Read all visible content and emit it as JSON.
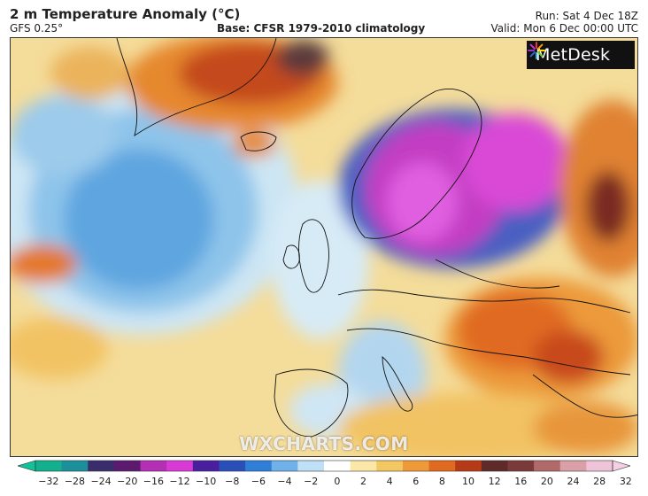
{
  "header": {
    "title": "2 m Temperature Anomaly (°C)",
    "model": "GFS 0.25°",
    "base": "Base: CFSR 1979-2010 climatology",
    "run": "Run: Sat 4 Dec 18Z",
    "valid": "Valid: Mon 6 Dec 00:00 UTC"
  },
  "logo": {
    "text": "MetDesk",
    "icon": "metdesk-starburst-icon"
  },
  "watermark": "WXCHARTS.COM",
  "colorbar": {
    "ticks": [
      -32,
      -28,
      -24,
      -20,
      -16,
      -12,
      -10,
      -8,
      -6,
      -4,
      -2,
      0,
      2,
      4,
      6,
      8,
      10,
      12,
      16,
      20,
      24,
      28,
      32
    ],
    "colors": [
      "#12b08c",
      "#1b8f9a",
      "#3a2d6b",
      "#5b1a6e",
      "#b52fb4",
      "#d93ad6",
      "#4a1f9e",
      "#2b4fb8",
      "#2f7fd9",
      "#6fb2ea",
      "#bfe0f5",
      "#ffffff",
      "#fbe7a8",
      "#f3c862",
      "#ee9a38",
      "#e06a1f",
      "#b73a16",
      "#5e2a2a",
      "#7b3a3a",
      "#b06a6a",
      "#d9a0a8",
      "#f0c4d8"
    ],
    "ends": {
      "left": "#12c39a",
      "right": "#f5d0e4"
    }
  }
}
